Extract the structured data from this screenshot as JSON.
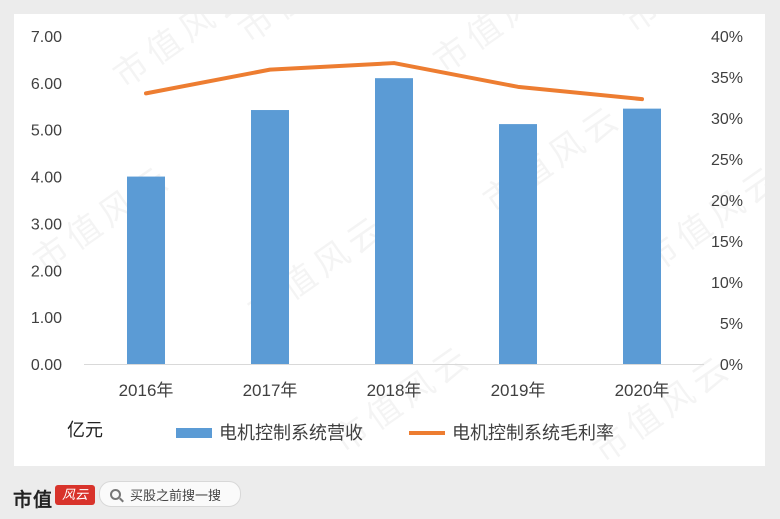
{
  "chart_data": {
    "type": "bar",
    "categories": [
      "2016年",
      "2017年",
      "2018年",
      "2019年",
      "2020年"
    ],
    "series": [
      {
        "name": "电机控制系统营收",
        "type": "bar",
        "axis": "left",
        "color": "#5b9bd5",
        "values": [
          4.0,
          5.42,
          6.1,
          5.12,
          5.45
        ]
      },
      {
        "name": "电机控制系统毛利率",
        "type": "line",
        "axis": "right",
        "color": "#ed7d31",
        "values": [
          0.33,
          0.359,
          0.367,
          0.338,
          0.323
        ]
      }
    ],
    "y_left": {
      "ylim": [
        0,
        7
      ],
      "ticks": [
        "0.00",
        "1.00",
        "2.00",
        "3.00",
        "4.00",
        "5.00",
        "6.00",
        "7.00"
      ]
    },
    "y_right": {
      "ylim": [
        0,
        0.4
      ],
      "ticks": [
        "0%",
        "5%",
        "10%",
        "15%",
        "20%",
        "25%",
        "30%",
        "35%",
        "40%"
      ]
    },
    "unit_label": "亿元",
    "legend_position": "bottom",
    "grid": false
  },
  "footer": {
    "brand": "市值",
    "brand_mark": "风云",
    "search_placeholder": "买股之前搜一搜"
  },
  "watermark": "市值风云"
}
